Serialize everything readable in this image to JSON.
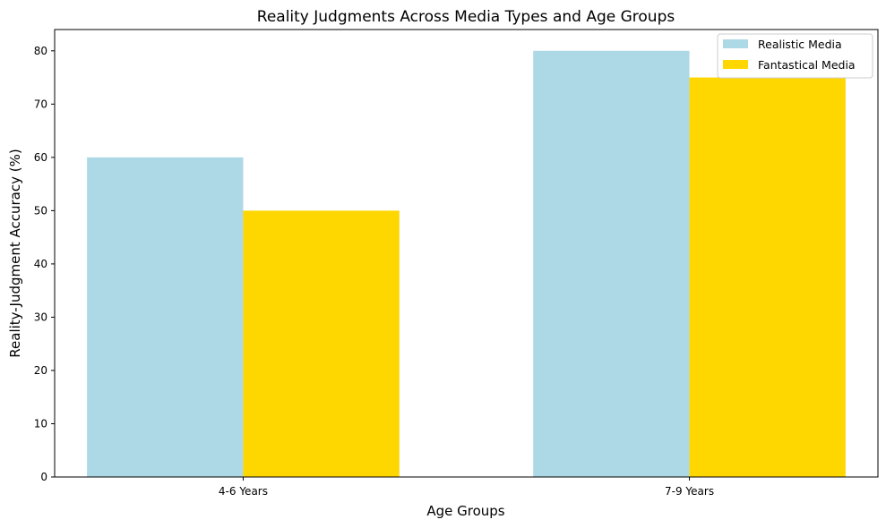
{
  "chart_data": {
    "type": "bar",
    "title": "Reality Judgments Across Media Types and Age Groups",
    "xlabel": "Age Groups",
    "ylabel": "Reality-Judgment Accuracy (%)",
    "categories": [
      "4-6 Years",
      "7-9 Years"
    ],
    "series": [
      {
        "name": "Realistic Media",
        "values": [
          60,
          80
        ],
        "color": "#add8e6"
      },
      {
        "name": "Fantastical Media",
        "values": [
          50,
          75
        ],
        "color": "#ffd700"
      }
    ],
    "ylim": [
      0,
      84
    ],
    "yticks": [
      "0",
      "10",
      "20",
      "30",
      "40",
      "50",
      "60",
      "70",
      "80"
    ],
    "grid": false,
    "legend_position": "top-right"
  }
}
